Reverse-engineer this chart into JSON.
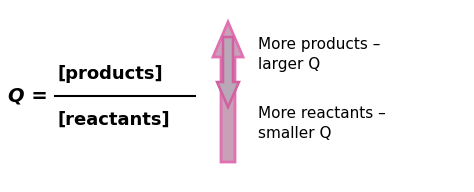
{
  "background_color": "#ffffff",
  "formula_q": "Q = ",
  "formula_numerator": "[products]",
  "formula_denominator": "[reactants]",
  "arrow_up_color": "#c8a0b8",
  "arrow_up_edge_color": "#e070b0",
  "arrow_down_color": "#b8a8b8",
  "arrow_down_edge_color": "#d060a0",
  "text_up_line1": "More products –",
  "text_up_line2": "larger Q",
  "text_down_line1": "More reactants –",
  "text_down_line2": "smaller Q",
  "fontsize_formula": 14,
  "fontsize_text": 11
}
